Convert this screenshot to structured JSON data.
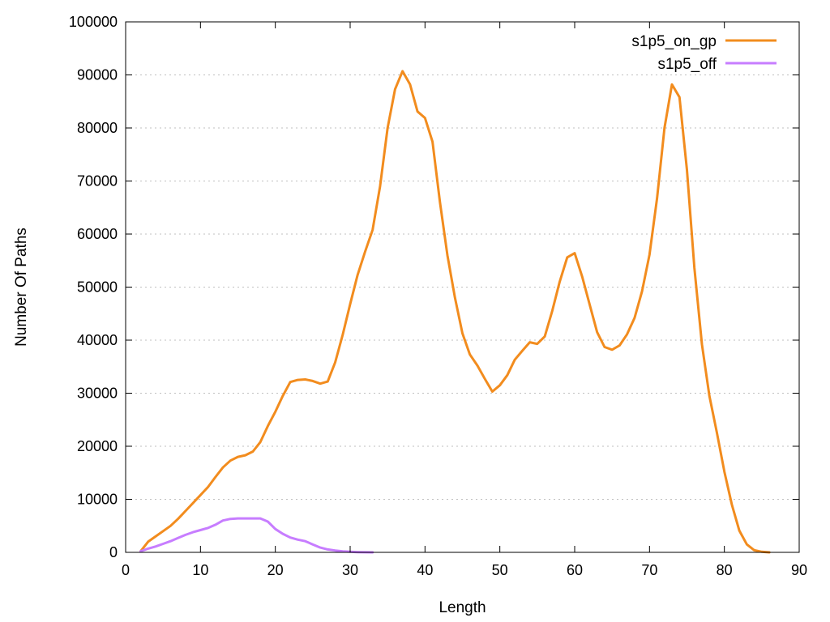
{
  "chart_data": {
    "type": "line",
    "title": "",
    "xlabel": "Length",
    "ylabel": "Number Of Paths",
    "xlim": [
      0,
      90
    ],
    "ylim": [
      0,
      100000
    ],
    "xticks": [
      0,
      10,
      20,
      30,
      40,
      50,
      60,
      70,
      80,
      90
    ],
    "yticks": [
      0,
      10000,
      20000,
      30000,
      40000,
      50000,
      60000,
      70000,
      80000,
      90000,
      100000
    ],
    "grid": "horizontal-dotted",
    "legend_position": "top-right",
    "series": [
      {
        "name": "s1p5_on_gp",
        "color": "#f28c1e",
        "x": [
          2,
          3,
          4,
          5,
          6,
          7,
          8,
          9,
          10,
          11,
          12,
          13,
          14,
          15,
          16,
          17,
          18,
          19,
          20,
          21,
          22,
          23,
          24,
          25,
          26,
          27,
          28,
          29,
          30,
          31,
          32,
          33,
          34,
          35,
          36,
          37,
          38,
          39,
          40,
          41,
          42,
          43,
          44,
          45,
          46,
          47,
          48,
          49,
          50,
          51,
          52,
          53,
          54,
          55,
          56,
          57,
          58,
          59,
          60,
          61,
          62,
          63,
          64,
          65,
          66,
          67,
          68,
          69,
          70,
          71,
          72,
          73,
          74,
          75,
          76,
          77,
          78,
          79,
          80,
          81,
          82,
          83,
          84,
          85,
          86
        ],
        "y": [
          200,
          2000,
          3000,
          4000,
          5000,
          6300,
          7800,
          9300,
          10800,
          12300,
          14200,
          16000,
          17300,
          18000,
          18300,
          19000,
          20800,
          23800,
          26500,
          29500,
          32100,
          32500,
          32600,
          32300,
          31800,
          32200,
          35800,
          41000,
          46800,
          52300,
          56700,
          60800,
          69000,
          80000,
          87300,
          90700,
          88200,
          83100,
          81900,
          77400,
          66000,
          56000,
          48000,
          41300,
          37300,
          35200,
          32700,
          30300,
          31500,
          33400,
          36300,
          38000,
          39600,
          39300,
          40700,
          45500,
          51000,
          55600,
          56400,
          52000,
          46700,
          41500,
          38700,
          38200,
          39000,
          41100,
          44200,
          49200,
          56100,
          66700,
          80000,
          88200,
          85800,
          72100,
          53600,
          39200,
          29500,
          22600,
          15200,
          9000,
          4100,
          1500,
          400,
          100,
          0
        ]
      },
      {
        "name": "s1p5_off",
        "color": "#c77dff",
        "x": [
          2,
          3,
          4,
          5,
          6,
          7,
          8,
          9,
          10,
          11,
          12,
          13,
          14,
          15,
          16,
          17,
          18,
          19,
          20,
          21,
          22,
          23,
          24,
          25,
          26,
          27,
          28,
          29,
          30,
          31,
          32,
          33
        ],
        "y": [
          200,
          700,
          1100,
          1600,
          2100,
          2700,
          3300,
          3800,
          4200,
          4600,
          5200,
          6000,
          6300,
          6400,
          6400,
          6400,
          6400,
          5800,
          4400,
          3500,
          2800,
          2400,
          2100,
          1500,
          900,
          550,
          350,
          200,
          100,
          50,
          20,
          0
        ]
      }
    ]
  }
}
